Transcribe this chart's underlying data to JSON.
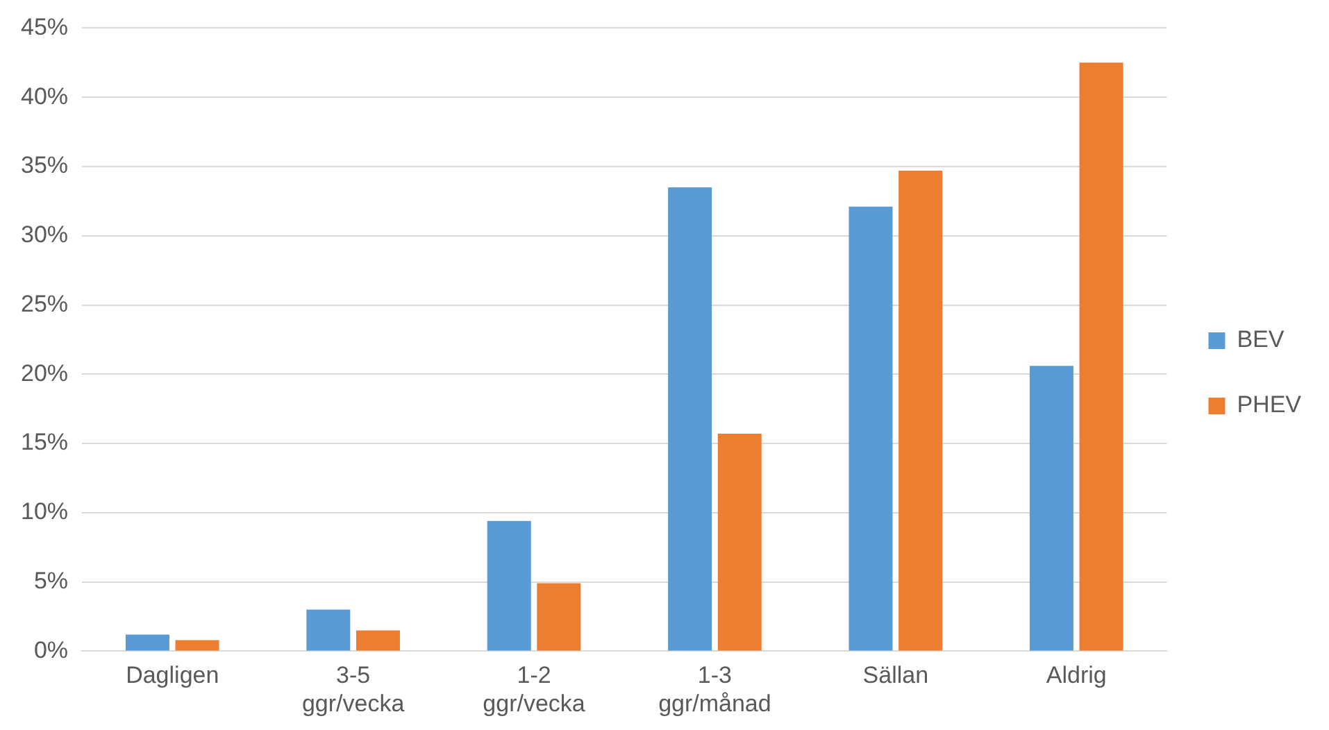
{
  "chart_data": {
    "type": "bar",
    "categories": [
      "Dagligen",
      "3-5 ggr/vecka",
      "1-2 ggr/vecka",
      "1-3 ggr/månad",
      "Sällan",
      "Aldrig"
    ],
    "series": [
      {
        "name": "BEV",
        "color": "#5b9bd5",
        "values": [
          1.2,
          3.0,
          9.4,
          33.5,
          32.1,
          20.6
        ]
      },
      {
        "name": "PHEV",
        "color": "#ed7d31",
        "values": [
          0.8,
          1.5,
          4.9,
          15.7,
          34.7,
          42.5
        ]
      }
    ],
    "ylim": [
      0,
      45
    ],
    "yticks": [
      {
        "value": 0,
        "label": "0%"
      },
      {
        "value": 5,
        "label": "5%"
      },
      {
        "value": 10,
        "label": "10%"
      },
      {
        "value": 15,
        "label": "15%"
      },
      {
        "value": 20,
        "label": "20%"
      },
      {
        "value": 25,
        "label": "25%"
      },
      {
        "value": 30,
        "label": "30%"
      },
      {
        "value": 35,
        "label": "35%"
      },
      {
        "value": 40,
        "label": "40%"
      },
      {
        "value": 45,
        "label": "45%"
      }
    ],
    "grid": "y",
    "legend": "right"
  }
}
